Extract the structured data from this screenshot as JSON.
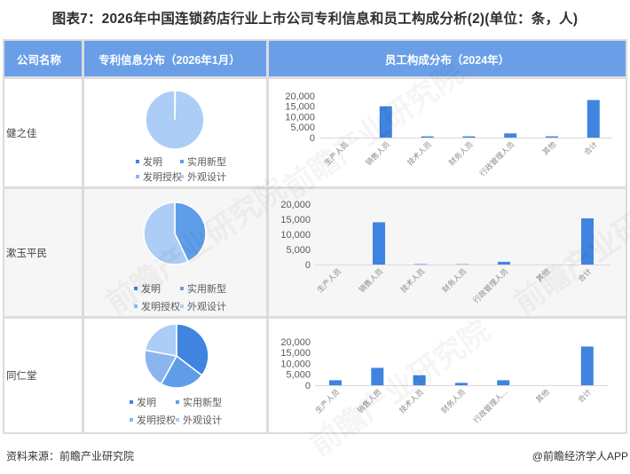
{
  "title": "图表7：2026年中国连锁药店行业上市公司专利信息和员工构成分析(2)(单位：条，人)",
  "table": {
    "headers": [
      "公司名称",
      "专利信息分布（2026年1月）",
      "员工构成分布（2024年）"
    ],
    "rows": [
      {
        "company": "健之佳"
      },
      {
        "company": "漱玉平民"
      },
      {
        "company": "同仁堂"
      }
    ]
  },
  "legend": {
    "items": [
      "发明",
      "实用新型",
      "发明授权",
      "外观设计"
    ],
    "colors": [
      "#3f84e0",
      "#5f9de8",
      "#8bb5ee",
      "#abcdf6"
    ]
  },
  "bar_color": "#3f84e0",
  "footer": {
    "source": "资料来源：前瞻产业研究院",
    "credit": "@前瞻经济学人APP"
  },
  "watermark": "前瞻产业研究院",
  "chart_data": [
    {
      "type": "pie",
      "company": "健之佳",
      "title": "专利信息分布（2026年1月）",
      "categories": [
        "发明",
        "实用新型",
        "发明授权",
        "外观设计"
      ],
      "values": [
        0.3,
        0,
        0,
        99.7
      ],
      "unit": "share %, estimated"
    },
    {
      "type": "bar",
      "company": "健之佳",
      "title": "员工构成分布（2024年）",
      "categories": [
        "生产人员",
        "销售人员",
        "技术人员",
        "财务人员",
        "行政管理人员",
        "其他",
        "合计"
      ],
      "tick_labels": [
        "生产人员",
        "销售人员",
        "技术人员",
        "财务人员",
        "行政管理人员",
        "其他",
        "合计"
      ],
      "values": [
        0,
        15000,
        600,
        600,
        2000,
        600,
        18000
      ],
      "yticks": [
        "20,000",
        "15,000",
        "10,000",
        "5,000",
        "0"
      ],
      "ylim": [
        0,
        20000
      ],
      "grid": false
    },
    {
      "type": "pie",
      "company": "漱玉平民",
      "title": "专利信息分布（2026年1月）",
      "categories": [
        "发明",
        "实用新型",
        "发明授权",
        "外观设计"
      ],
      "values": [
        0,
        43,
        0,
        57
      ],
      "unit": "share %, estimated"
    },
    {
      "type": "bar",
      "company": "漱玉平民",
      "title": "员工构成分布（2024年）",
      "categories": [
        "生产人员",
        "销售人员",
        "技术人员",
        "财务人员",
        "行政管理人员",
        "其他",
        "合计"
      ],
      "tick_labels": [
        "生产人员",
        "销售人员",
        "技术人员",
        "财务人员",
        "行政管理人员",
        "其他",
        "合计"
      ],
      "values": [
        0,
        14000,
        150,
        100,
        900,
        0,
        15300
      ],
      "yticks": [
        "20,000",
        "15,000",
        "10,000",
        "5,000",
        "0"
      ],
      "ylim": [
        0,
        20000
      ],
      "grid": false
    },
    {
      "type": "pie",
      "company": "同仁堂",
      "title": "专利信息分布（2026年1月）",
      "categories": [
        "发明",
        "实用新型",
        "发明授权",
        "外观设计"
      ],
      "values": [
        35.4,
        22.6,
        19.9,
        22.1
      ],
      "unit": "share %, estimated"
    },
    {
      "type": "bar",
      "company": "同仁堂",
      "title": "员工构成分布（2024年）",
      "categories": [
        "生产人员",
        "销售人员",
        "技术人员",
        "财务人员",
        "行政管理人员",
        "其他",
        "合计"
      ],
      "tick_labels": [
        "生产人员",
        "销售人员",
        "技术人员",
        "财务人员",
        "行政管理人...",
        "其他",
        "合计"
      ],
      "values": [
        2300,
        8000,
        4600,
        1100,
        2300,
        0,
        17800
      ],
      "yticks": [
        "20,000",
        "15,000",
        "10,000",
        "5,000",
        "0"
      ],
      "ylim": [
        0,
        20000
      ],
      "grid": false
    }
  ]
}
